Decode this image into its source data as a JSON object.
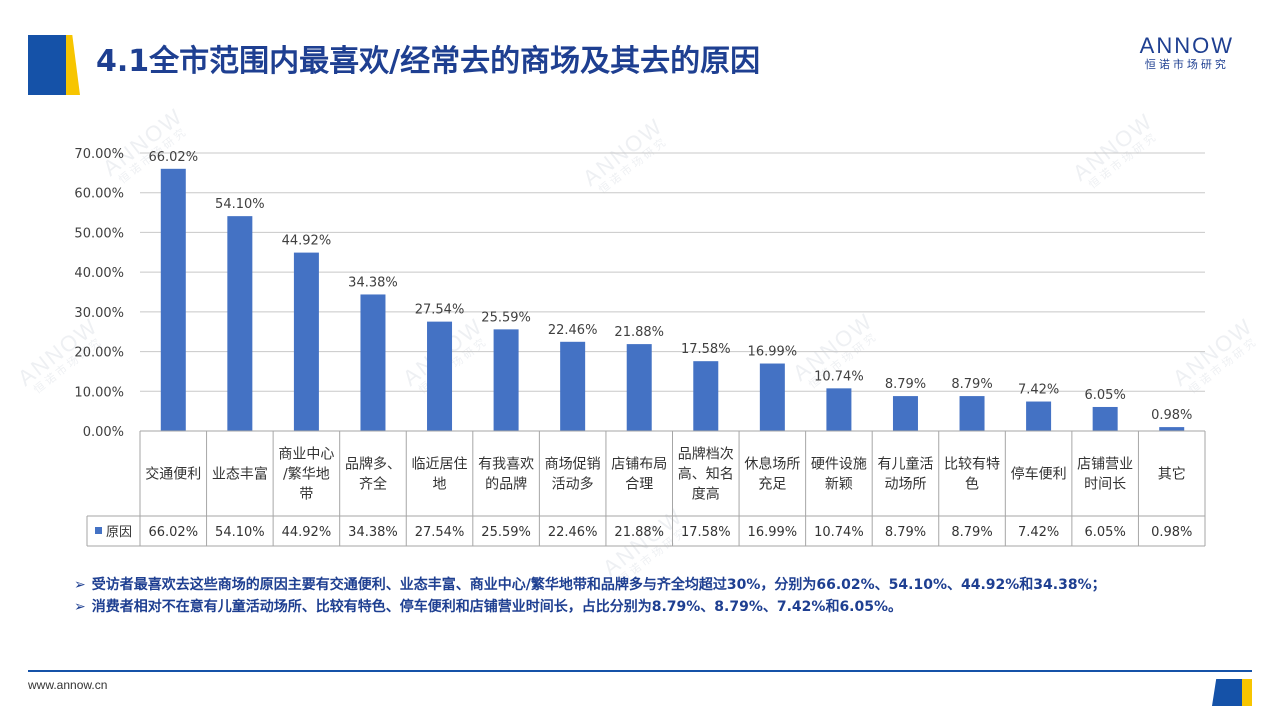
{
  "page": {
    "title": "4.1全市范围内最喜欢/经常去的商场及其去的原因",
    "brand_name": "ANNOW",
    "brand_sub": "恒诺市场研究",
    "footer_url": "www.annow.cn"
  },
  "notes": [
    "受访者最喜欢去这些商场的原因主要有交通便利、业态丰富、商业中心/繁华地带和品牌多与齐全均超过30%，分别为66.02%、54.10%、44.92%和34.38%；",
    "消费者相对不在意有儿童活动场所、比较有特色、停车便利和店铺营业时间长，占比分别为8.79%、8.79%、7.42%和6.05%。"
  ],
  "colors": {
    "bar": "#4472c4",
    "title": "#1e3f91",
    "accent_yellow": "#f7c500"
  },
  "chart_data": {
    "type": "bar",
    "categories": [
      [
        "交通便利"
      ],
      [
        "业态丰富"
      ],
      [
        "商业中心",
        "/繁华地",
        "带"
      ],
      [
        "品牌多、",
        "齐全"
      ],
      [
        "临近居住",
        "地"
      ],
      [
        "有我喜欢",
        "的品牌"
      ],
      [
        "商场促销",
        "活动多"
      ],
      [
        "店铺布局",
        "合理"
      ],
      [
        "品牌档次",
        "高、知名",
        "度高"
      ],
      [
        "休息场所",
        "充足"
      ],
      [
        "硬件设施",
        "新颖"
      ],
      [
        "有儿童活",
        "动场所"
      ],
      [
        "比较有特",
        "色"
      ],
      [
        "停车便利"
      ],
      [
        "店铺营业",
        "时间长"
      ],
      [
        "其它"
      ]
    ],
    "series": [
      {
        "name": "原因",
        "values": [
          66.02,
          54.1,
          44.92,
          34.38,
          27.54,
          25.59,
          22.46,
          21.88,
          17.58,
          16.99,
          10.74,
          8.79,
          8.79,
          7.42,
          6.05,
          0.98
        ],
        "labels": [
          "66.02%",
          "54.10%",
          "44.92%",
          "34.38%",
          "27.54%",
          "25.59%",
          "22.46%",
          "21.88%",
          "17.58%",
          "16.99%",
          "10.74%",
          "8.79%",
          "8.79%",
          "7.42%",
          "6.05%",
          "0.98%"
        ]
      }
    ],
    "yticks": [
      "0.00%",
      "10.00%",
      "20.00%",
      "30.00%",
      "40.00%",
      "50.00%",
      "60.00%",
      "70.00%"
    ],
    "ylim": [
      0,
      70
    ],
    "grid": true,
    "data_table": true,
    "legend": "data-table"
  }
}
